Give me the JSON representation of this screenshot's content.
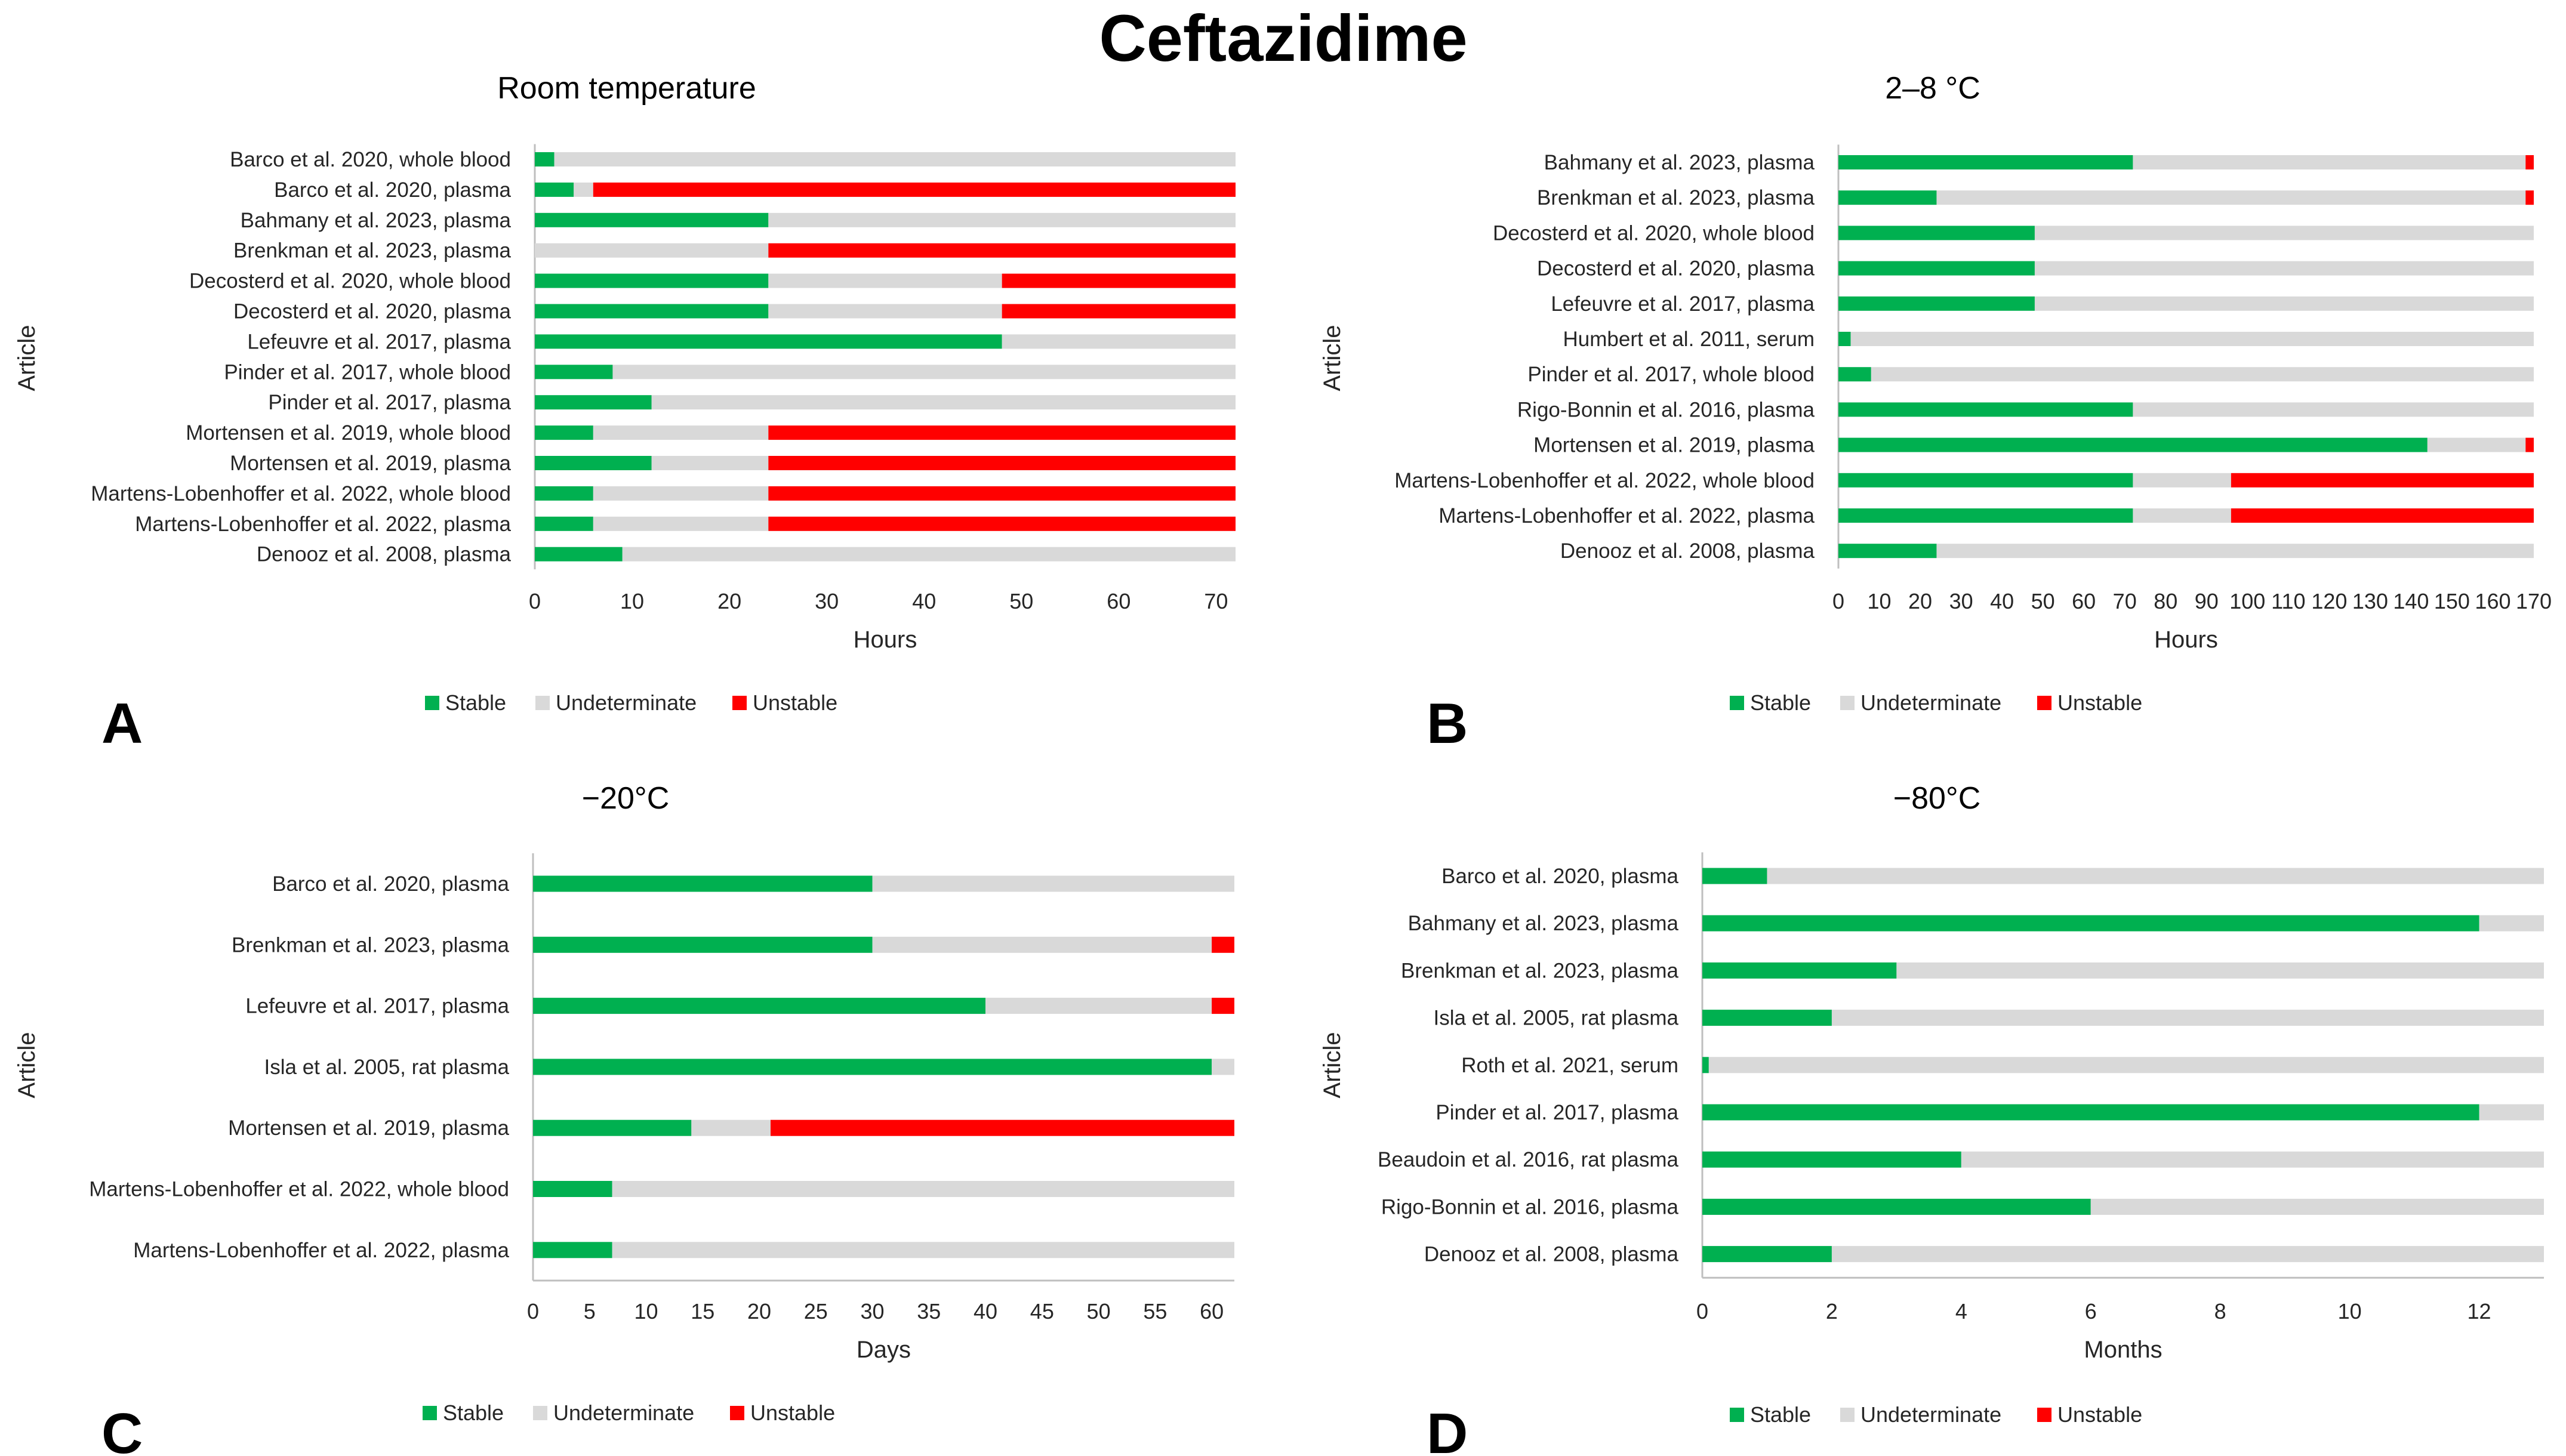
{
  "figure_title": "Ceftazidime",
  "colors": {
    "stable": "#00B050",
    "undeterminate": "#D9D9D9",
    "unstable": "#FF0000",
    "axis": "#BFBFBF",
    "text": "#262626"
  },
  "legend": {
    "stable": "Stable",
    "undeterminate": "Undeterminate",
    "unstable": "Unstable"
  },
  "chart_data": [
    {
      "panel": "A",
      "type": "bar",
      "orientation": "horizontal-stacked",
      "title": "Room temperature",
      "xlabel": "Hours",
      "ylabel": "Article",
      "xlim": [
        0,
        72
      ],
      "xticks": [
        0,
        10,
        20,
        30,
        40,
        50,
        60,
        70
      ],
      "legend_position": "bottom",
      "categories": [
        "Barco et al. 2020, whole blood",
        "Barco et al. 2020, plasma",
        "Bahmany et al. 2023, plasma",
        "Brenkman et al. 2023, plasma",
        "Decosterd et al. 2020, whole blood",
        "Decosterd et al. 2020, plasma",
        "Lefeuvre et al. 2017, plasma",
        "Pinder et al. 2017, whole blood",
        "Pinder et al. 2017, plasma",
        "Mortensen et al. 2019, whole blood",
        "Mortensen et al. 2019, plasma",
        "Martens-Lobenhoffer et al. 2022, whole blood",
        "Martens-Lobenhoffer et al. 2022, plasma",
        "Denooz et al. 2008, plasma"
      ],
      "series": [
        {
          "name": "Stable",
          "values": [
            2,
            4,
            24,
            0,
            24,
            24,
            48,
            8,
            12,
            6,
            12,
            6,
            6,
            9
          ]
        },
        {
          "name": "Undeterminate",
          "values": [
            70,
            2,
            48,
            24,
            24,
            24,
            24,
            64,
            60,
            18,
            12,
            18,
            18,
            63
          ]
        },
        {
          "name": "Unstable",
          "values": [
            0,
            66,
            0,
            48,
            24,
            24,
            0,
            0,
            0,
            48,
            48,
            48,
            48,
            0
          ]
        }
      ]
    },
    {
      "panel": "B",
      "type": "bar",
      "orientation": "horizontal-stacked",
      "title": "2–8 °C",
      "xlabel": "Hours",
      "ylabel": "Article",
      "xlim": [
        0,
        170
      ],
      "xticks": [
        0,
        10,
        20,
        30,
        40,
        50,
        60,
        70,
        80,
        90,
        100,
        110,
        120,
        130,
        140,
        150,
        160,
        170
      ],
      "legend_position": "bottom",
      "categories": [
        "Bahmany et al. 2023, plasma",
        "Brenkman et al. 2023, plasma",
        "Decosterd et al. 2020, whole blood",
        "Decosterd et al. 2020, plasma",
        "Lefeuvre et al. 2017, plasma",
        "Humbert et al. 2011, serum",
        "Pinder et al. 2017, whole blood",
        "Rigo-Bonnin et al. 2016, plasma",
        "Mortensen et al. 2019, plasma",
        "Martens-Lobenhoffer et al. 2022, whole blood",
        "Martens-Lobenhoffer et al. 2022, plasma",
        "Denooz et al. 2008, plasma"
      ],
      "series": [
        {
          "name": "Stable",
          "values": [
            72,
            24,
            48,
            48,
            48,
            3,
            8,
            72,
            144,
            72,
            72,
            24
          ]
        },
        {
          "name": "Undeterminate",
          "values": [
            96,
            144,
            122,
            122,
            122,
            167,
            162,
            98,
            24,
            24,
            24,
            146
          ]
        },
        {
          "name": "Unstable",
          "values": [
            2,
            2,
            0,
            0,
            0,
            0,
            0,
            0,
            2,
            74,
            74,
            0
          ]
        }
      ]
    },
    {
      "panel": "C",
      "type": "bar",
      "orientation": "horizontal-stacked",
      "title": "−20°C",
      "xlabel": "Days",
      "ylabel": "Article",
      "xlim": [
        0,
        62
      ],
      "xticks": [
        0,
        5,
        10,
        15,
        20,
        25,
        30,
        35,
        40,
        45,
        50,
        55,
        60
      ],
      "legend_position": "bottom",
      "categories": [
        "Barco et al. 2020, plasma",
        "Brenkman et al. 2023, plasma",
        "Lefeuvre et al. 2017, plasma",
        "Isla et al. 2005, rat plasma",
        "Mortensen et al. 2019, plasma",
        "Martens-Lobenhoffer et al. 2022, whole blood",
        "Martens-Lobenhoffer et al. 2022, plasma"
      ],
      "series": [
        {
          "name": "Stable",
          "values": [
            30,
            30,
            40,
            60,
            14,
            7,
            7
          ]
        },
        {
          "name": "Undeterminate",
          "values": [
            32,
            30,
            20,
            2,
            7,
            55,
            55
          ]
        },
        {
          "name": "Unstable",
          "values": [
            0,
            2,
            2,
            0,
            41,
            0,
            0
          ]
        }
      ]
    },
    {
      "panel": "D",
      "type": "bar",
      "orientation": "horizontal-stacked",
      "title": "−80°C",
      "xlabel": "Months",
      "ylabel": "Article",
      "xlim": [
        0,
        13
      ],
      "xticks": [
        0,
        2,
        4,
        6,
        8,
        10,
        12
      ],
      "legend_position": "bottom",
      "categories": [
        "Barco et al. 2020, plasma",
        "Bahmany et al. 2023, plasma",
        "Brenkman et al. 2023, plasma",
        "Isla et al. 2005, rat plasma",
        "Roth et al. 2021, serum",
        "Pinder et al. 2017, plasma",
        "Beaudoin et al. 2016, rat plasma",
        "Rigo-Bonnin et al. 2016, plasma",
        "Denooz et al. 2008, plasma"
      ],
      "series": [
        {
          "name": "Stable",
          "values": [
            1,
            12,
            3,
            2,
            0.1,
            12,
            4,
            6,
            2
          ]
        },
        {
          "name": "Undeterminate",
          "values": [
            12,
            1,
            10,
            11,
            12.9,
            1,
            9,
            7,
            11
          ]
        },
        {
          "name": "Unstable",
          "values": [
            0,
            0,
            0,
            0,
            0,
            0,
            0,
            0,
            0
          ]
        }
      ]
    }
  ]
}
